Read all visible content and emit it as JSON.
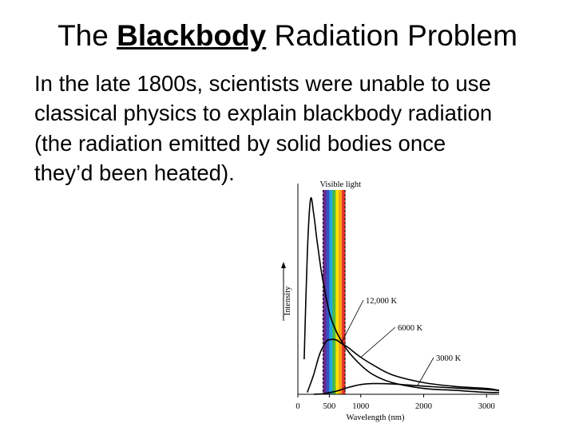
{
  "slide": {
    "title_pre": "The ",
    "title_emph": "Blackbody",
    "title_post": " Radiation Problem",
    "body_lines": [
      "In the late 1800s, scientists were unable to use",
      "classical physics to explain blackbody radiation",
      "(the radiation emitted by solid bodies once",
      "they’d been heated)."
    ]
  },
  "colors": {
    "text": "#000000",
    "background": "#ffffff",
    "spectrum": [
      "#6a2a8e",
      "#3a4fc2",
      "#22a7dd",
      "#4cb848",
      "#f4e200",
      "#f6a21e",
      "#e8322a"
    ]
  },
  "chart_data": {
    "type": "line",
    "xlabel": "Wavelength (nm)",
    "ylabel": "Intensity",
    "xlim": [
      0,
      3200
    ],
    "ylim": [
      0,
      100
    ],
    "xticks": [
      0,
      500,
      1000,
      2000,
      3000
    ],
    "band": {
      "label": "Visible light",
      "from": 400,
      "to": 750
    },
    "series": [
      {
        "name": "12,000 K",
        "x": [
          100,
          150,
          200,
          250,
          300,
          350,
          400,
          500,
          600,
          700,
          800,
          1000,
          1200,
          1500,
          2000,
          2500,
          3000,
          3200
        ],
        "y": [
          18,
          72,
          100,
          93,
          80,
          68,
          58,
          42,
          33,
          27,
          22,
          15,
          10,
          6,
          3,
          2,
          1,
          1
        ]
      },
      {
        "name": "6000 K",
        "x": [
          150,
          250,
          350,
          450,
          500,
          600,
          700,
          800,
          1000,
          1200,
          1500,
          2000,
          2500,
          3000,
          3200
        ],
        "y": [
          1,
          10,
          21,
          27,
          28,
          28,
          26,
          24,
          19,
          15,
          10,
          6,
          4,
          3,
          2
        ]
      },
      {
        "name": "3000 K",
        "x": [
          250,
          400,
          600,
          800,
          1000,
          1200,
          1500,
          2000,
          2500,
          3000,
          3200
        ],
        "y": [
          0,
          0.3,
          1.5,
          3.5,
          5,
          5.5,
          5.3,
          4.2,
          3.2,
          2.4,
          2
        ]
      }
    ]
  }
}
